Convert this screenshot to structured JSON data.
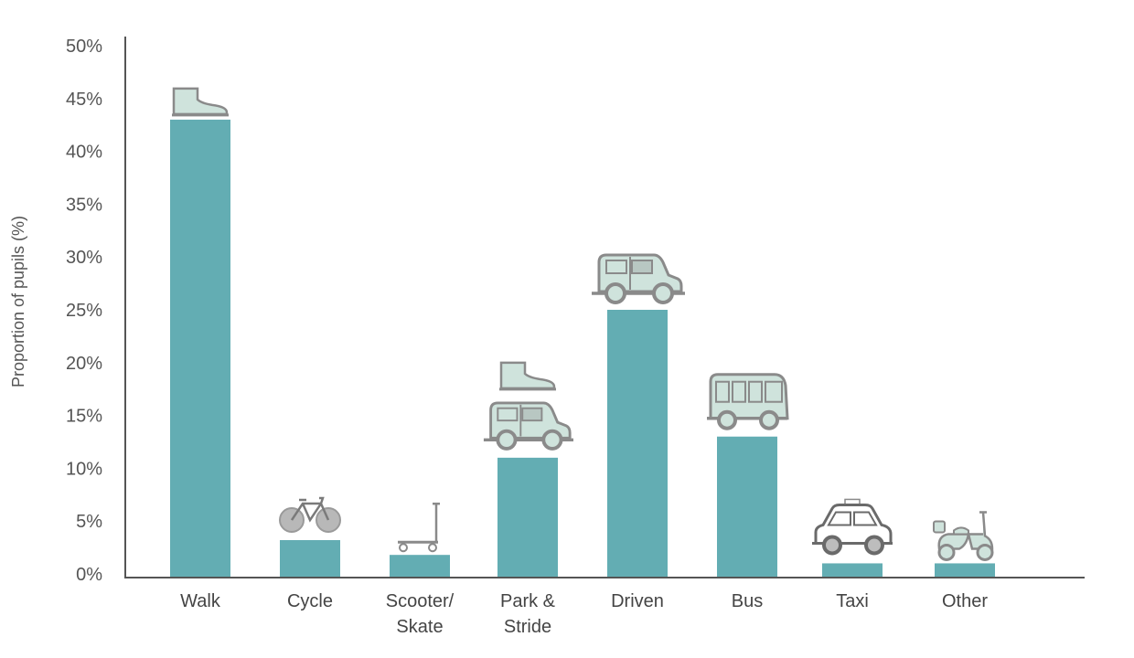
{
  "chart_data": {
    "type": "bar",
    "title": "",
    "xlabel": "",
    "ylabel": "Proportion of pupils (%)",
    "ylim": [
      0,
      50
    ],
    "yticks": [
      "0%",
      "5%",
      "10%",
      "15%",
      "20%",
      "25%",
      "30%",
      "35%",
      "40%",
      "45%",
      "50%"
    ],
    "grid": false,
    "categories": [
      [
        "Walk"
      ],
      [
        "Cycle"
      ],
      [
        "Scooter/",
        "Skate"
      ],
      [
        "Park &",
        "Stride"
      ],
      [
        "Driven"
      ],
      [
        "Bus"
      ],
      [
        "Taxi"
      ],
      [
        "Other"
      ]
    ],
    "values": [
      43,
      3.2,
      1.8,
      11,
      25,
      13,
      1,
      1
    ],
    "icons": [
      "shoe-icon",
      "bicycle-icon",
      "scooter-icon",
      "car-and-shoe-icon",
      "car-icon",
      "bus-icon",
      "taxi-icon",
      "moped-icon"
    ]
  },
  "colors": {
    "bar": "#63adb3",
    "icon_fill": "#cfe3dc",
    "icon_stroke": "#8a8a8a",
    "axis": "#555555"
  }
}
